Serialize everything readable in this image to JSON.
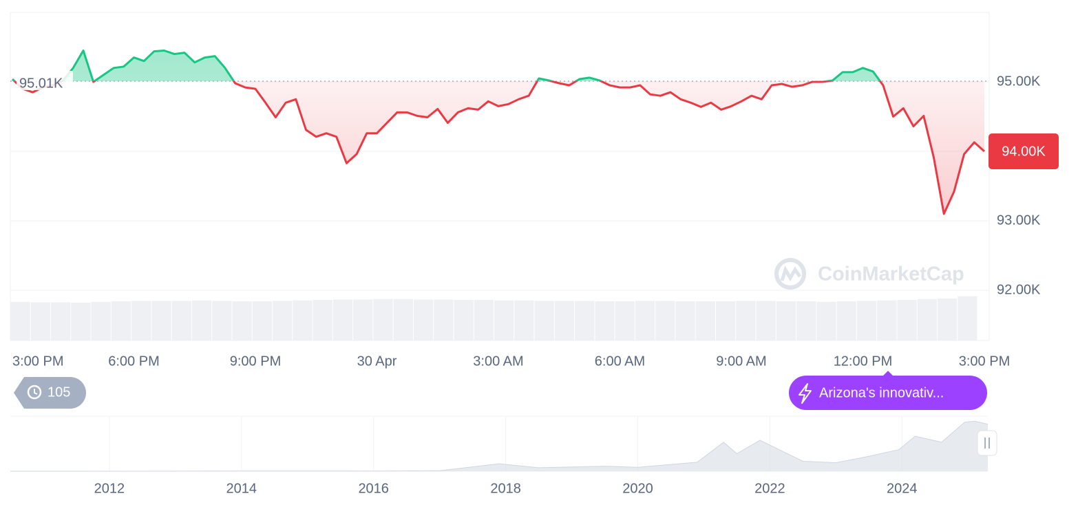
{
  "chart_data": {
    "type": "line",
    "xlim": [
      0,
      96
    ],
    "xticks": [
      {
        "value": 0,
        "label": "3:00 PM"
      },
      {
        "value": 12,
        "label": "6:00 PM"
      },
      {
        "value": 24,
        "label": "9:00 PM"
      },
      {
        "value": 36,
        "label": "30 Apr"
      },
      {
        "value": 48,
        "label": "3:00 AM"
      },
      {
        "value": 60,
        "label": "6:00 AM"
      },
      {
        "value": 72,
        "label": "9:00 AM"
      },
      {
        "value": 84,
        "label": "12:00 PM"
      },
      {
        "value": 96,
        "label": "3:00 PM"
      }
    ],
    "ylim": [
      92000,
      96000
    ],
    "yticks": [
      {
        "value": 95000,
        "label": "95.00K"
      },
      {
        "value": 94000,
        "label": "94.00K"
      },
      {
        "value": 93000,
        "label": "93.00K"
      },
      {
        "value": 92000,
        "label": "92.00K"
      }
    ],
    "grid": true,
    "baseline": {
      "value": 95010,
      "label": "95.01K"
    },
    "current_price": {
      "value": 94000,
      "label": "94.00K"
    },
    "up_color": "#16c784",
    "down_color": "#ea3943",
    "values": [
      95040,
      94900,
      94850,
      94920,
      94950,
      95020,
      95200,
      95450,
      95000,
      95100,
      95200,
      95220,
      95350,
      95300,
      95440,
      95450,
      95400,
      95420,
      95280,
      95350,
      95370,
      95200,
      94980,
      94920,
      94900,
      94700,
      94490,
      94700,
      94750,
      94310,
      94210,
      94260,
      94210,
      93830,
      93960,
      94260,
      94260,
      94410,
      94560,
      94560,
      94510,
      94490,
      94610,
      94410,
      94560,
      94620,
      94600,
      94720,
      94650,
      94680,
      94750,
      94800,
      95050,
      95020,
      94980,
      94950,
      95040,
      95060,
      95020,
      94950,
      94920,
      94920,
      94950,
      94820,
      94800,
      94850,
      94750,
      94700,
      94640,
      94700,
      94600,
      94650,
      94720,
      94800,
      94750,
      94950,
      94970,
      94930,
      94950,
      95000,
      95000,
      95020,
      95140,
      95140,
      95200,
      95150,
      94950,
      94500,
      94620,
      94360,
      94510,
      93910,
      93100,
      93420,
      93960,
      94130,
      94000
    ],
    "volume": {
      "ylim": [
        0,
        100
      ],
      "color": "#eef0f3",
      "values": [
        84,
        83,
        83,
        82,
        84,
        85,
        86,
        86,
        86,
        87,
        86,
        85,
        85,
        86,
        87,
        88,
        89,
        89,
        90,
        90,
        89,
        89,
        88,
        88,
        87,
        87,
        86,
        86,
        86,
        85,
        85,
        86,
        86,
        85,
        85,
        85,
        86,
        86,
        85,
        85,
        84,
        85,
        86,
        87,
        88,
        90,
        91,
        96
      ]
    },
    "watermark": "CoinMarketCap",
    "history_count": "105",
    "news": "Arizona's innovativ...",
    "navigator": {
      "xlim": [
        2010.5,
        2025.3
      ],
      "xticks": [
        2012,
        2014,
        2016,
        2018,
        2020,
        2022,
        2024
      ],
      "ylim": [
        0,
        110000
      ],
      "color": "#dde1e7",
      "x": [
        2010.5,
        2013,
        2014,
        2016,
        2017,
        2017.9,
        2018.5,
        2019.5,
        2020,
        2020.9,
        2021.3,
        2021.5,
        2021.85,
        2022.5,
        2023,
        2023.5,
        2023.95,
        2024.2,
        2024.6,
        2024.95,
        2025.1,
        2025.3
      ],
      "values": [
        0,
        100,
        500,
        400,
        1000,
        15000,
        7000,
        10000,
        8000,
        18000,
        58000,
        35000,
        62000,
        20000,
        17000,
        30000,
        43000,
        70000,
        58000,
        98000,
        100000,
        94000
      ]
    }
  }
}
